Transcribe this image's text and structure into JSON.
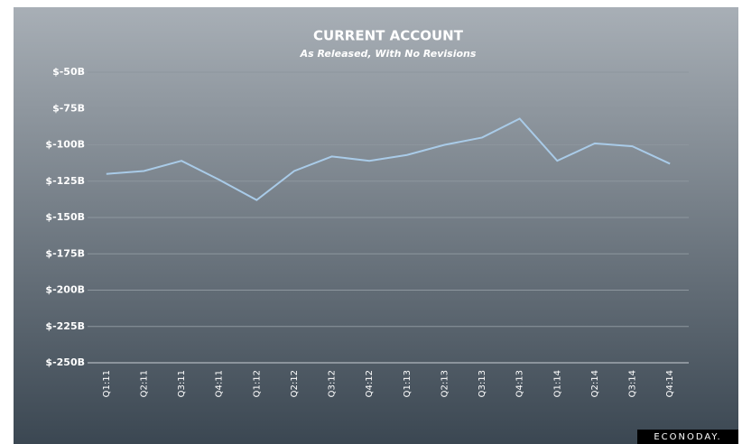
{
  "chart_data": {
    "type": "line",
    "title": "CURRENT ACCOUNT",
    "subtitle": "As Released, With No Revisions",
    "source": "ECONODAY.",
    "categories": [
      "Q1:11",
      "Q2:11",
      "Q3:11",
      "Q4:11",
      "Q1:12",
      "Q2:12",
      "Q3:12",
      "Q4:12",
      "Q1:13",
      "Q2:13",
      "Q3:13",
      "Q4:13",
      "Q1:14",
      "Q2:14",
      "Q3:14",
      "Q4:14"
    ],
    "series": [
      {
        "name": "Current Account",
        "color": "#a9cbe8",
        "values": [
          -120,
          -118,
          -111,
          -124,
          -138,
          -118,
          -108,
          -111,
          -107,
          -100,
          -95,
          -82,
          -111,
          -99,
          -101,
          -113
        ]
      }
    ],
    "ylim": [
      -250,
      -50
    ],
    "yticks": [
      {
        "value": -250,
        "label": "$-250B"
      },
      {
        "value": -225,
        "label": "$-225B"
      },
      {
        "value": -200,
        "label": "$-200B"
      },
      {
        "value": -175,
        "label": "$-175B"
      },
      {
        "value": -150,
        "label": "$-150B"
      },
      {
        "value": -125,
        "label": "$-125B"
      },
      {
        "value": -100,
        "label": "$-100B"
      },
      {
        "value": -75,
        "label": "$-75B"
      },
      {
        "value": -50,
        "label": "$-50B"
      }
    ],
    "grid": true
  }
}
